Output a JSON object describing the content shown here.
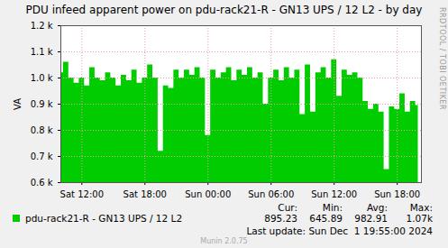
{
  "chart_data": {
    "type": "area",
    "title": "PDU infeed apparent power on pdu-rack21-R - GN13 UPS / 12 L2 - by day",
    "y_label": "VA",
    "side_text": "RRDTOOL / TOBI OETIKER",
    "x": [
      10,
      10.5,
      11,
      11.5,
      12,
      12.5,
      13,
      13.5,
      14,
      14.5,
      15,
      15.5,
      16,
      16.5,
      17,
      17.5,
      18,
      18.5,
      19,
      19.5,
      20,
      20.5,
      21,
      21.5,
      22,
      22.5,
      23,
      23.5,
      24,
      24.5,
      25,
      25.5,
      26,
      26.5,
      27,
      27.5,
      28,
      28.5,
      29,
      29.5,
      30,
      30.5,
      31,
      31.5,
      32,
      32.5,
      33,
      33.5,
      34,
      34.5,
      35,
      35.5,
      36,
      36.5,
      37,
      37.5,
      38,
      38.5,
      39,
      39.5,
      40,
      40.5,
      41,
      41.5,
      42,
      42.5,
      43,
      43.5,
      44
    ],
    "series": [
      {
        "name": "pdu-rack21-R - GN13 UPS / 12 L2",
        "color": "#00cc00",
        "values": [
          1020,
          1060,
          1000,
          980,
          1000,
          970,
          1040,
          1000,
          990,
          1020,
          1000,
          970,
          1010,
          990,
          1030,
          980,
          1000,
          1050,
          1000,
          720,
          970,
          960,
          1030,
          1000,
          1030,
          1010,
          1040,
          1000,
          780,
          1030,
          1000,
          1020,
          1040,
          990,
          1030,
          1010,
          1040,
          1000,
          1020,
          900,
          1000,
          1030,
          990,
          1040,
          1000,
          1030,
          860,
          1050,
          870,
          1020,
          1040,
          1000,
          1070,
          930,
          1030,
          1010,
          1020,
          1000,
          910,
          880,
          900,
          870,
          650,
          890,
          880,
          940,
          870,
          910,
          895
        ]
      }
    ],
    "xlim": [
      10,
      44.3
    ],
    "xticks": [
      {
        "value": 12,
        "label": "Sat 12:00"
      },
      {
        "value": 18,
        "label": "Sat 18:00"
      },
      {
        "value": 24,
        "label": "Sun 00:00"
      },
      {
        "value": 30,
        "label": "Sun 06:00"
      },
      {
        "value": 36,
        "label": "Sun 12:00"
      },
      {
        "value": 42,
        "label": "Sun 18:00"
      }
    ],
    "ylim": [
      600,
      1200
    ],
    "yticks": [
      {
        "value": 600,
        "label": "0.6 k"
      },
      {
        "value": 700,
        "label": "0.7 k"
      },
      {
        "value": 800,
        "label": "0.8 k"
      },
      {
        "value": 900,
        "label": "0.9 k"
      },
      {
        "value": 1000,
        "label": "1.0 k"
      },
      {
        "value": 1100,
        "label": "1.1 k"
      },
      {
        "value": 1200,
        "label": "1.2 k"
      }
    ],
    "grid": true,
    "stats": [
      {
        "label": "Cur:",
        "value": 895.23
      },
      {
        "label": "Min:",
        "value": 645.89
      },
      {
        "label": "Avg:",
        "value": 982.91
      },
      {
        "label": "Max:",
        "value": 1070,
        "value_label": "1.07k"
      }
    ],
    "footer": "Last update: Sun Dec  1 19:55:00 2024",
    "credit": "Munin 2.0.75"
  }
}
